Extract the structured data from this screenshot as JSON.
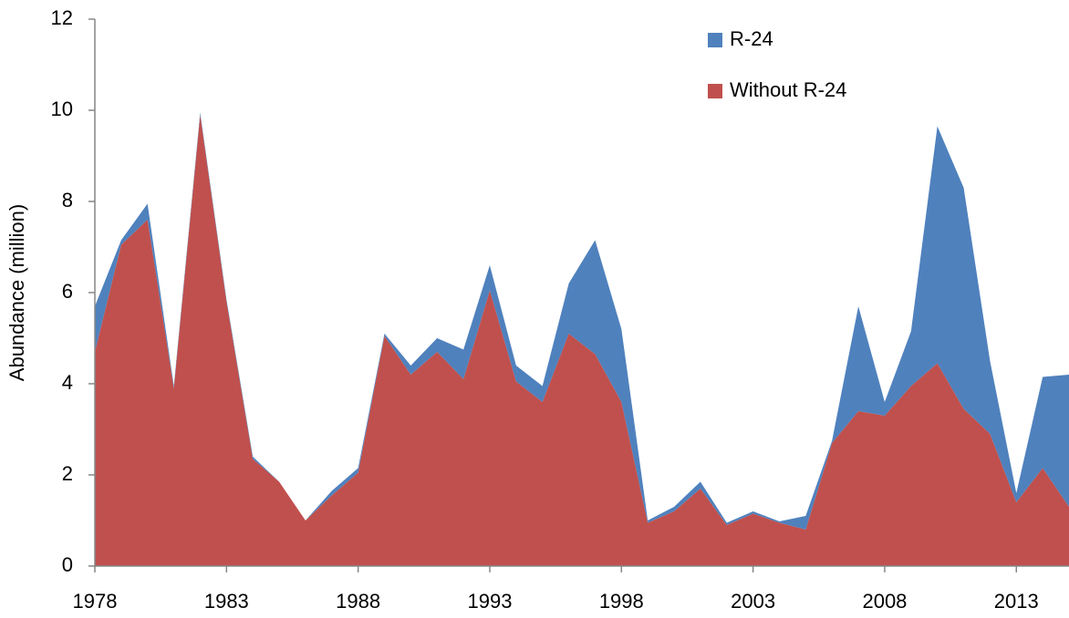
{
  "chart_data": {
    "type": "stacked-area",
    "y_label": "Abundance (million)",
    "x": [
      1978,
      1979,
      1980,
      1981,
      1982,
      1983,
      1984,
      1985,
      1986,
      1987,
      1988,
      1989,
      1990,
      1991,
      1992,
      1993,
      1994,
      1995,
      1996,
      1997,
      1998,
      1999,
      2000,
      2001,
      2002,
      2003,
      2004,
      2005,
      2006,
      2007,
      2008,
      2009,
      2010,
      2011,
      2012,
      2013,
      2014,
      2015
    ],
    "series": [
      {
        "name": "Without R-24",
        "color": "#c0504d",
        "values": [
          4.7,
          7.05,
          7.6,
          3.9,
          9.9,
          5.8,
          2.35,
          1.85,
          1.0,
          1.55,
          2.05,
          5.05,
          4.2,
          4.7,
          4.1,
          6.05,
          4.05,
          3.6,
          5.1,
          4.65,
          3.6,
          0.95,
          1.2,
          1.7,
          0.9,
          1.15,
          0.95,
          0.8,
          2.7,
          3.4,
          3.3,
          3.95,
          4.45,
          3.45,
          2.9,
          1.4,
          2.15,
          1.3
        ]
      },
      {
        "name": "R-24",
        "color": "#4f81bd",
        "values": [
          1.0,
          0.1,
          0.35,
          0.05,
          0.05,
          0.05,
          0.05,
          0,
          0,
          0.1,
          0.1,
          0.05,
          0.2,
          0.3,
          0.65,
          0.55,
          0.35,
          0.35,
          1.1,
          2.5,
          1.6,
          0.05,
          0.1,
          0.15,
          0.05,
          0.05,
          0.03,
          0.3,
          0.05,
          2.3,
          0.3,
          1.2,
          5.2,
          4.85,
          1.6,
          0.2,
          2.0,
          2.9
        ]
      }
    ],
    "xlim": [
      1978,
      2015
    ],
    "xticks": [
      1978,
      1983,
      1988,
      1993,
      1998,
      2003,
      2008,
      2013
    ],
    "ylim": [
      0,
      12
    ],
    "yticks": [
      0,
      2,
      4,
      6,
      8,
      10,
      12
    ],
    "legend": "top-right"
  }
}
